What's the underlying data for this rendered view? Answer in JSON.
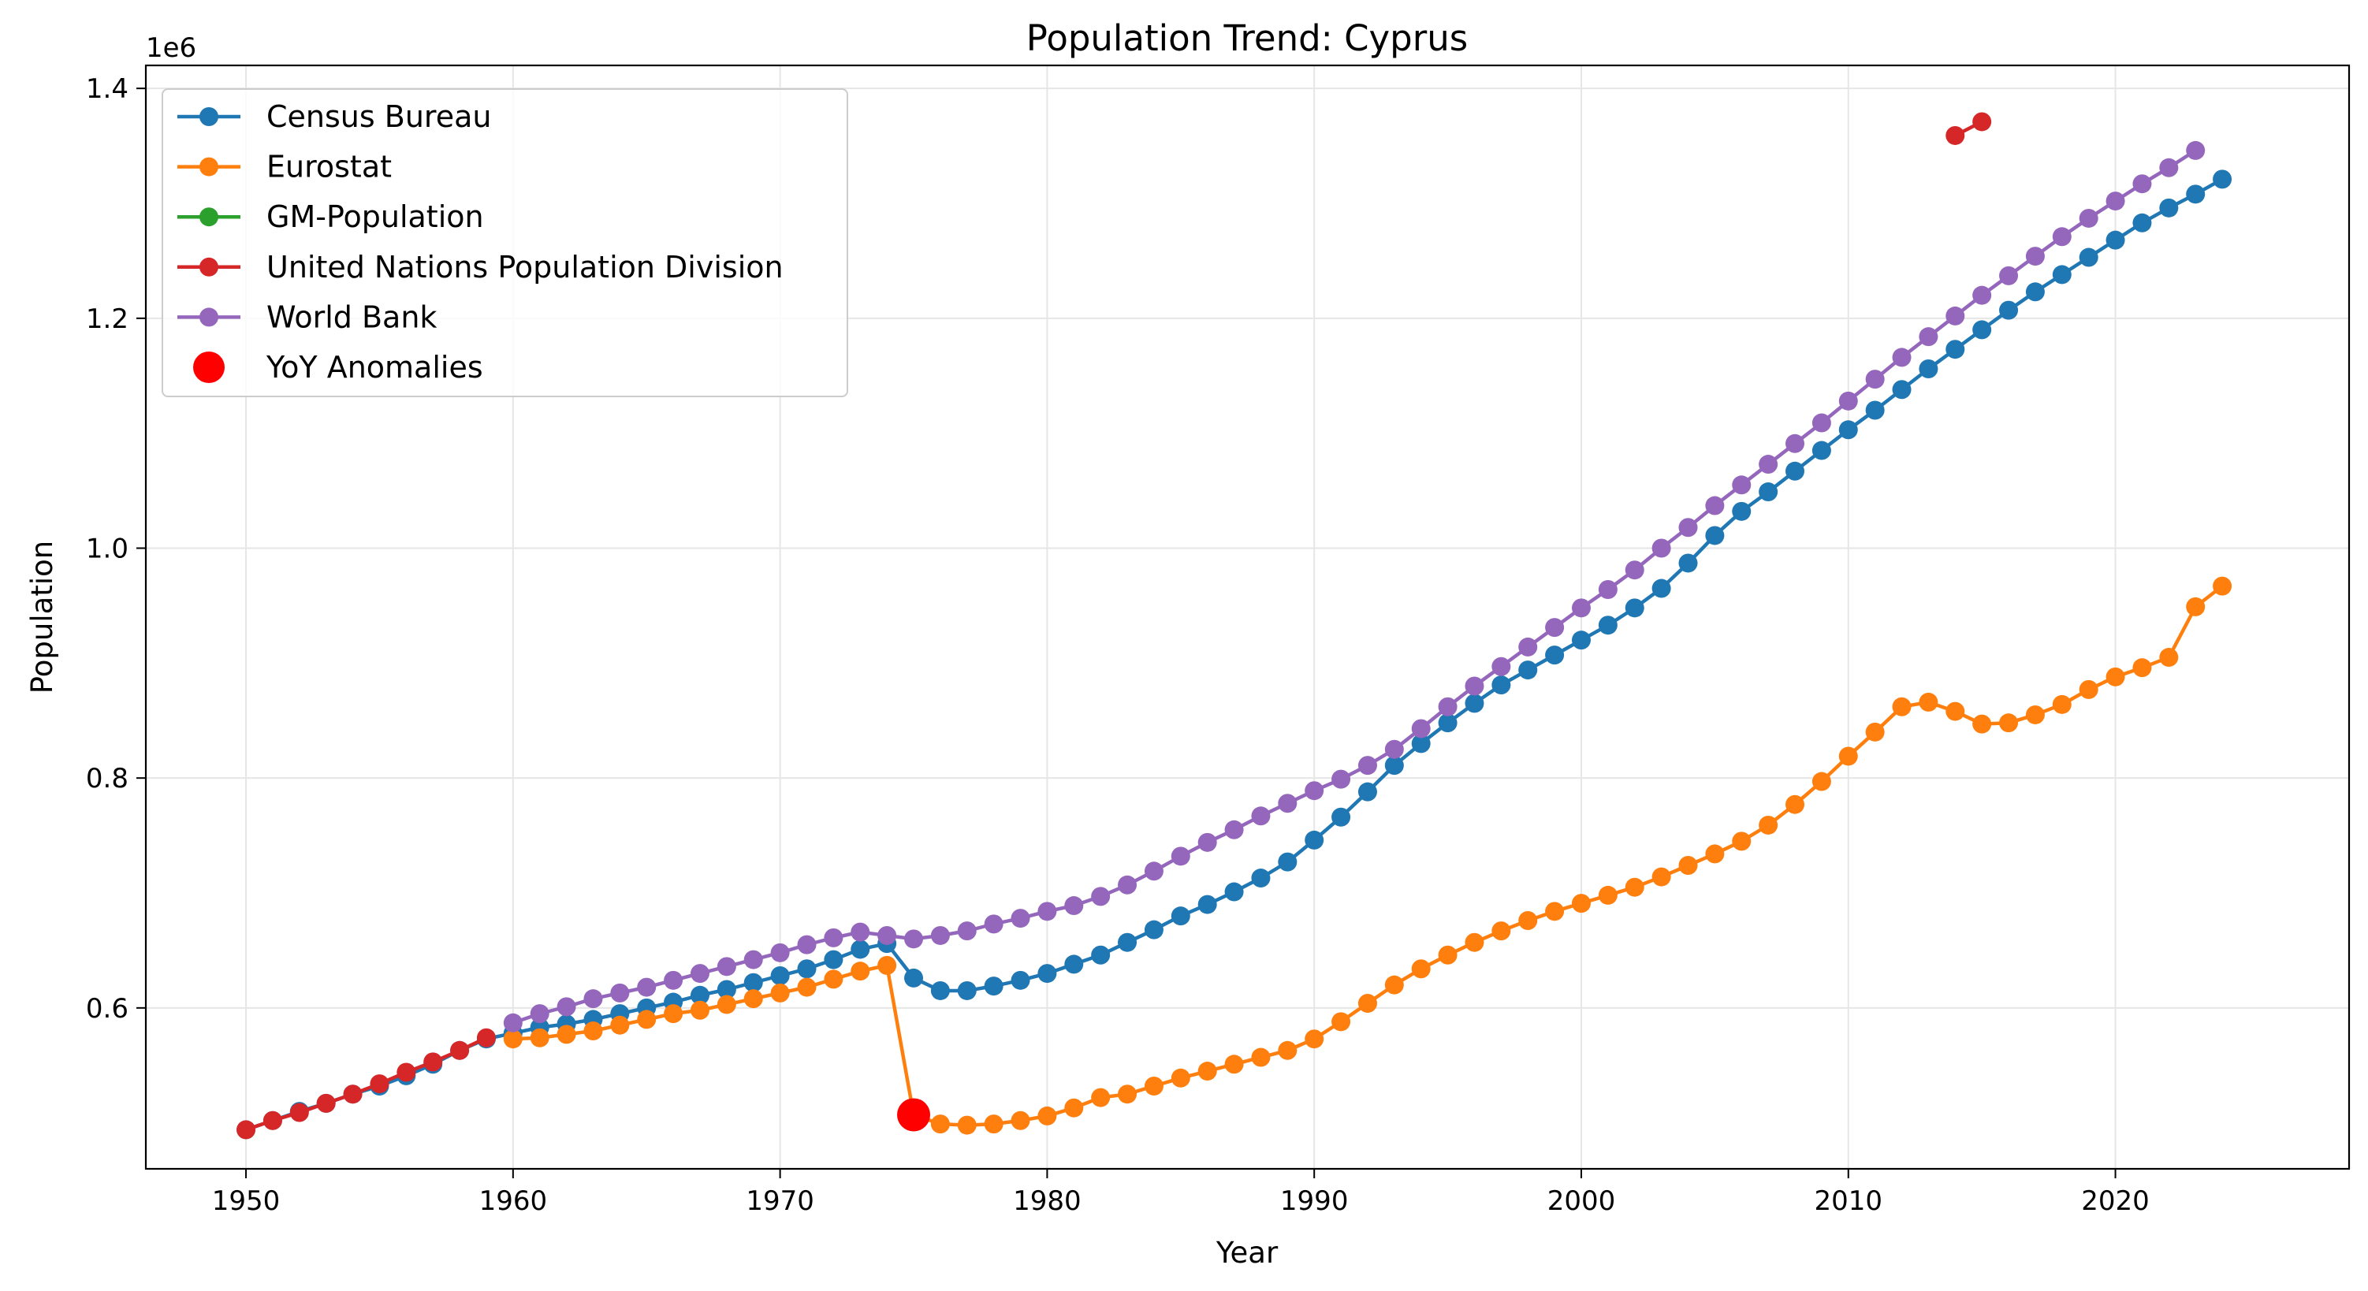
{
  "chart_data": {
    "type": "line",
    "title": "Population Trend: Cyprus",
    "xlabel": "Year",
    "ylabel": "Population",
    "y_offset_label": "1e6",
    "y_scale": 1000000,
    "xlim": [
      1946.25,
      2028.75
    ],
    "ylim": [
      460000,
      1420000
    ],
    "xticks": [
      1950,
      1960,
      1970,
      1980,
      1990,
      2000,
      2010,
      2020
    ],
    "xtick_labels": [
      "1950",
      "1960",
      "1970",
      "1980",
      "1990",
      "2000",
      "2010",
      "2020"
    ],
    "yticks": [
      600000,
      800000,
      1000000,
      1200000,
      1400000
    ],
    "ytick_labels": [
      "0.6",
      "0.8",
      "1.0",
      "1.2",
      "1.4"
    ],
    "grid": true,
    "legend_position": "top-left",
    "series": [
      {
        "name": "Census Bureau",
        "color": "#1f77b4",
        "x_start": 1950,
        "values": [
          494000,
          502000,
          510000,
          517000,
          525000,
          532000,
          541000,
          551000,
          563000,
          573000,
          578000,
          583000,
          586000,
          590000,
          595000,
          600000,
          605000,
          611000,
          616000,
          622000,
          628000,
          634000,
          642000,
          651000,
          656000,
          626000,
          615000,
          615000,
          619000,
          624000,
          630000,
          638000,
          646000,
          657000,
          668000,
          680000,
          690000,
          701000,
          713000,
          727000,
          746000,
          766000,
          788000,
          811000,
          830000,
          848000,
          865000,
          881000,
          894000,
          907000,
          920000,
          933000,
          948000,
          965000,
          987000,
          1011000,
          1032000,
          1049000,
          1067000,
          1085000,
          1103000,
          1120000,
          1138000,
          1156000,
          1173000,
          1190000,
          1207000,
          1223000,
          1238000,
          1253000,
          1268000,
          1283000,
          1296000,
          1308000,
          1321000
        ]
      },
      {
        "name": "Eurostat",
        "color": "#ff7f0e",
        "x_start": 1960,
        "values": [
          573000,
          574000,
          577000,
          580000,
          585000,
          590000,
          595000,
          598000,
          603000,
          608000,
          613000,
          618000,
          625000,
          632000,
          637000,
          507000,
          499000,
          498000,
          499000,
          502000,
          506000,
          513000,
          522000,
          525000,
          532000,
          539000,
          545000,
          551000,
          557000,
          563000,
          573000,
          588000,
          604000,
          620000,
          634000,
          646000,
          657000,
          667000,
          676000,
          684000,
          691000,
          698000,
          705000,
          714000,
          724000,
          734000,
          745000,
          759000,
          777000,
          797000,
          819000,
          840000,
          862000,
          866000,
          858000,
          847000,
          848000,
          855000,
          864000,
          877000,
          888000,
          896000,
          905000,
          949000,
          967000
        ]
      },
      {
        "name": "GM-Population",
        "color": "#2ca02c",
        "x_start": 1950,
        "values": []
      },
      {
        "name": "United Nations Population Division",
        "color": "#d62728",
        "x_start": 1950,
        "values": [
          494000,
          502000,
          509000,
          517000,
          525000,
          534000,
          544000,
          553000,
          563000,
          574000,
          null,
          null,
          null,
          null,
          null,
          null,
          null,
          null,
          null,
          null,
          null,
          null,
          null,
          null,
          null,
          null,
          null,
          null,
          null,
          null,
          null,
          null,
          null,
          null,
          null,
          null,
          null,
          null,
          null,
          null,
          null,
          null,
          null,
          null,
          null,
          null,
          null,
          null,
          null,
          null,
          null,
          null,
          null,
          null,
          null,
          null,
          null,
          null,
          null,
          null,
          null,
          null,
          null,
          null,
          1359000,
          1371000
        ]
      },
      {
        "name": "World Bank",
        "color": "#9467bd",
        "x_start": 1960,
        "values": [
          587000,
          595000,
          601000,
          608000,
          613000,
          618000,
          624000,
          630000,
          636000,
          642000,
          648000,
          655000,
          661000,
          666000,
          663000,
          660000,
          663000,
          667000,
          673000,
          678000,
          684000,
          689000,
          697000,
          707000,
          719000,
          732000,
          744000,
          755000,
          767000,
          778000,
          789000,
          799000,
          811000,
          825000,
          843000,
          862000,
          880000,
          897000,
          914000,
          931000,
          948000,
          964000,
          981000,
          1000000,
          1018000,
          1037000,
          1055000,
          1073000,
          1091000,
          1109000,
          1128000,
          1147000,
          1166000,
          1184000,
          1202000,
          1220000,
          1237000,
          1254000,
          1271000,
          1287000,
          1302000,
          1317000,
          1331000,
          1346000
        ]
      }
    ],
    "anomalies": {
      "name": "YoY Anomalies",
      "color": "#ff0000",
      "points": [
        {
          "x": 1975,
          "y": 507000
        }
      ]
    }
  }
}
